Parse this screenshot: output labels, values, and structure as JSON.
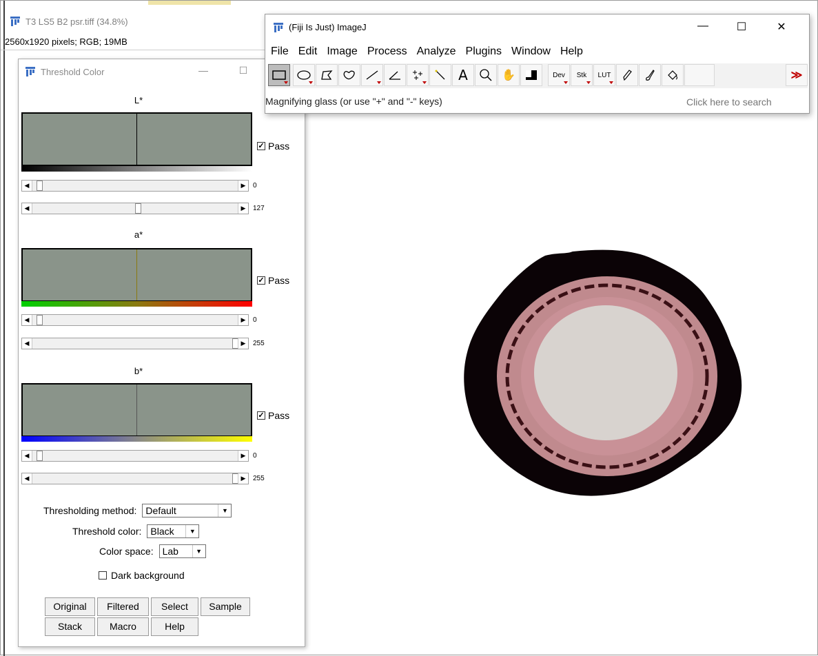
{
  "image_window": {
    "title": "T3 LS5 B2 psr.tiff (34.8%)",
    "info": "2560x1920 pixels; RGB; 19MB"
  },
  "threshold_window": {
    "title": "Threshold Color",
    "channels": [
      {
        "label": "L*",
        "pass_label": "Pass",
        "pass_checked": true,
        "min_value": "0",
        "max_value": "127",
        "min_fraction": 0.0,
        "max_fraction": 0.5,
        "gradient": "black-white"
      },
      {
        "label": "a*",
        "pass_label": "Pass",
        "pass_checked": true,
        "min_value": "0",
        "max_value": "255",
        "min_fraction": 0.0,
        "max_fraction": 1.0,
        "gradient": "green-red"
      },
      {
        "label": "b*",
        "pass_label": "Pass",
        "pass_checked": true,
        "min_value": "0",
        "max_value": "255",
        "min_fraction": 0.0,
        "max_fraction": 1.0,
        "gradient": "blue-yellow"
      }
    ],
    "thresholding_method": {
      "label": "Thresholding method:",
      "value": "Default"
    },
    "threshold_color": {
      "label": "Threshold color:",
      "value": "Black"
    },
    "color_space": {
      "label": "Color space:",
      "value": "Lab"
    },
    "dark_background": {
      "label": "Dark background",
      "checked": false
    },
    "buttons_row1": [
      "Original",
      "Filtered",
      "Select",
      "Sample"
    ],
    "buttons_row2": [
      "Stack",
      "Macro",
      "Help"
    ]
  },
  "imagej_window": {
    "title": "(Fiji Is Just) ImageJ",
    "controls": {
      "minimize": "—",
      "maximize": "☐",
      "close": "✕"
    },
    "menu": [
      "File",
      "Edit",
      "Image",
      "Process",
      "Analyze",
      "Plugins",
      "Window",
      "Help"
    ],
    "tools": [
      {
        "icon": "rectangle-tool-icon",
        "selected": true
      },
      {
        "icon": "oval-tool-icon"
      },
      {
        "icon": "polygon-tool-icon"
      },
      {
        "icon": "freehand-tool-icon"
      },
      {
        "icon": "line-tool-icon"
      },
      {
        "icon": "angle-tool-icon"
      },
      {
        "icon": "multipoint-tool-icon"
      },
      {
        "icon": "wand-tool-icon"
      },
      {
        "icon": "text-tool-icon"
      },
      {
        "icon": "magnifier-tool-icon"
      },
      {
        "icon": "hand-tool-icon"
      },
      {
        "icon": "color-picker-tool-icon"
      },
      {
        "icon": "dev-menu-icon",
        "label": "Dev"
      },
      {
        "icon": "stk-menu-icon",
        "label": "Stk"
      },
      {
        "icon": "lut-menu-icon",
        "label": "LUT"
      },
      {
        "icon": "pencil-tool-icon"
      },
      {
        "icon": "brush-tool-icon"
      },
      {
        "icon": "flood-fill-tool-icon"
      },
      {
        "icon": "more-tools-icon",
        "label": "≫"
      }
    ],
    "status": "Magnifying glass (or use \"+\" and \"-\" keys)",
    "search_placeholder": "Click here to search"
  },
  "colors": {
    "histogram_bg": "#8a948a",
    "status_red": "#c00000",
    "fiji_blue": "#3b6fc4"
  }
}
